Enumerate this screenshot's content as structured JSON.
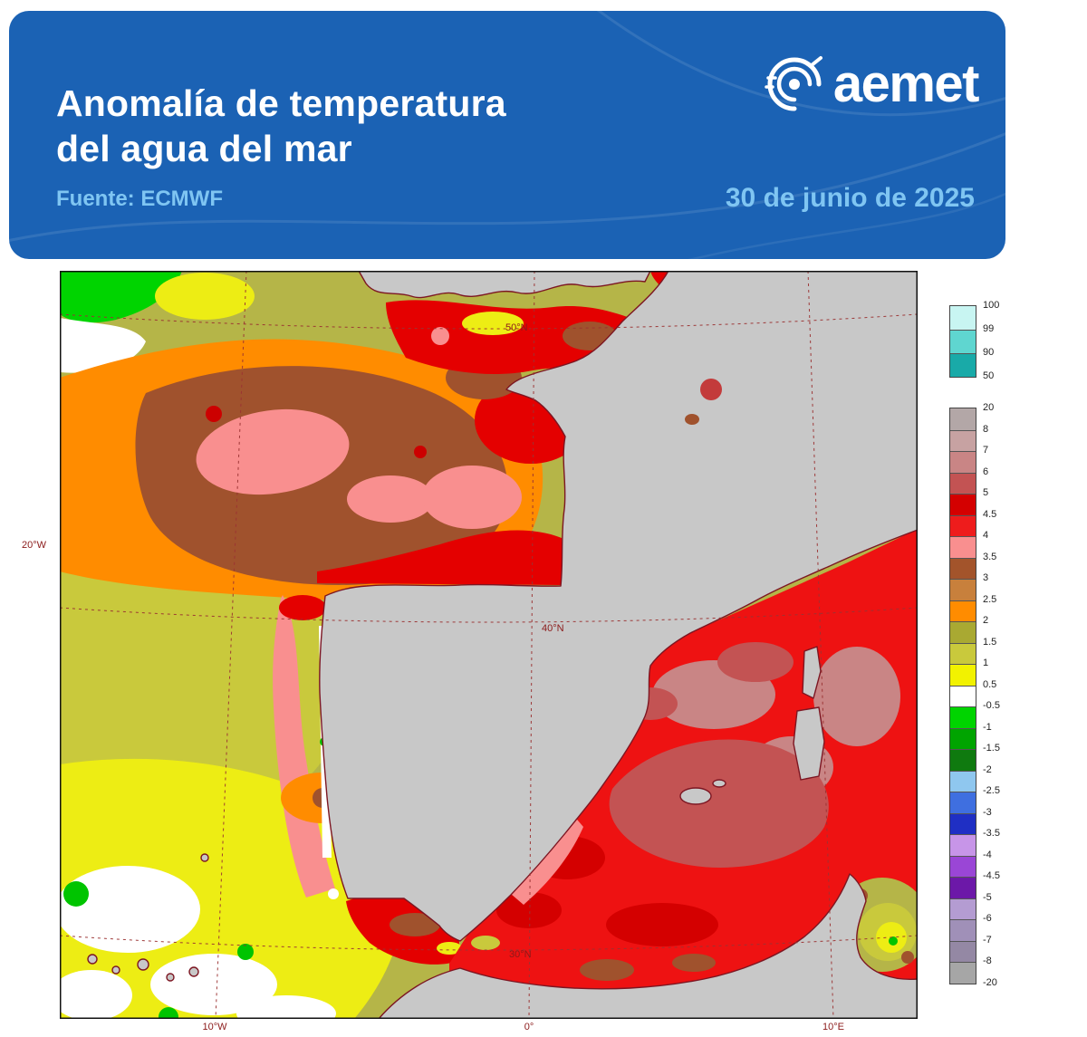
{
  "header": {
    "title_line1": "Anomalía de temperatura",
    "title_line2": "del agua del mar",
    "source": "Fuente: ECMWF",
    "date": "30 de junio de 2025",
    "brand": "aemet",
    "colors": {
      "bg": "#1b62b4",
      "accent_text": "#7fc5f2",
      "title_text": "#ffffff"
    }
  },
  "map": {
    "labels": {
      "lat": [
        "50°N",
        "40°N",
        "30°N"
      ],
      "lon_bottom": [
        "10°W",
        "0°",
        "10°E"
      ],
      "lon_left": "20°W"
    },
    "colors": {
      "land": "#c8c8c8",
      "coastline": "#7c1622",
      "grid": "#9b3333",
      "mediterranean_red": "#ee1212",
      "atlantic_olive": "#b5b548"
    }
  },
  "legend": {
    "top": {
      "boundaries": [
        "100",
        "99",
        "90",
        "50"
      ],
      "colors": [
        "#c8f5f2",
        "#5fd6d0",
        "#19aaa8"
      ]
    },
    "main": {
      "boundaries": [
        "20",
        "8",
        "7",
        "6",
        "5",
        "4.5",
        "4",
        "3.5",
        "3",
        "2.5",
        "2",
        "1.5",
        "1",
        "0.5",
        "-0.5",
        "-1",
        "-1.5",
        "-2",
        "-2.5",
        "-3",
        "-3.5",
        "-4",
        "-4.5",
        "-5",
        "-6",
        "-7",
        "-8",
        "-20"
      ],
      "colors": [
        "#b3a7a7",
        "#c7a2a2",
        "#c98585",
        "#c35353",
        "#d40000",
        "#ee1c1c",
        "#f98f8f",
        "#a3542b",
        "#c8803c",
        "#ff8c00",
        "#a9a932",
        "#c9c93c",
        "#f2f200",
        "#ffffff",
        "#00d400",
        "#00a400",
        "#0f7a0f",
        "#8fc7ef",
        "#3f6fe0",
        "#1f2fc4",
        "#c795e8",
        "#9a46d6",
        "#6c18a8",
        "#b49cd2",
        "#a090b8",
        "#9488a4",
        "#a6a6a6"
      ]
    }
  }
}
